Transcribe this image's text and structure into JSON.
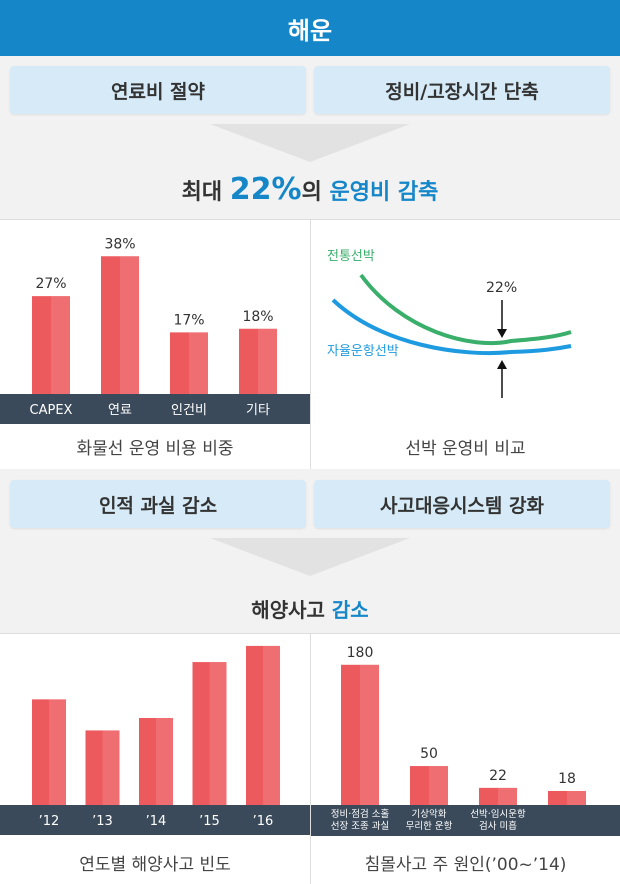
{
  "header": {
    "title": "해운"
  },
  "section1": {
    "pill_left": "연료비 절약",
    "pill_right": "정비/고장시간 단축",
    "headline_pre": "최대 ",
    "headline_num": "22%",
    "headline_mid": "의 ",
    "headline_accent": "운영비 감축"
  },
  "section2": {
    "pill_left": "인적 과실 감소",
    "pill_right": "사고대응시스템 강화",
    "headline_pre": "해양사고 ",
    "headline_accent": "감소"
  },
  "colors": {
    "header": "#1587c9",
    "accent": "#1587c9",
    "bar": "#ec5a5e",
    "green": "#3aae6b",
    "blue": "#1e9ae0",
    "axis": "#3a4a5a"
  },
  "chart_data": [
    {
      "type": "bar",
      "title": "화물선 운영 비용 비중",
      "categories": [
        "CAPEX",
        "연료",
        "인건비",
        "기타"
      ],
      "values": [
        27,
        38,
        17,
        18
      ],
      "value_labels": [
        "27%",
        "38%",
        "17%",
        "18%"
      ],
      "ylim": [
        0,
        40
      ]
    },
    {
      "type": "line",
      "title": "선박 운영비 비교",
      "series": [
        {
          "name": "전통선박"
        },
        {
          "name": "자율운항선박"
        }
      ],
      "annotation": "22%"
    },
    {
      "type": "bar",
      "title": "연도별 해양사고 빈도",
      "categories": [
        "’12",
        "’13",
        "’14",
        "’15",
        "’16"
      ],
      "values": [
        85,
        60,
        70,
        115,
        128
      ],
      "ylim": [
        0,
        140
      ]
    },
    {
      "type": "bar",
      "title": "침몰사고 주 원인(’00~’14)",
      "categories": [
        [
          "정비·점검 소홀",
          "선장 조종 과실"
        ],
        [
          "기상악화",
          "무리한 운항"
        ],
        [
          "선박·임시운항",
          "검사 미흡"
        ],
        [
          "",
          ""
        ]
      ],
      "values": [
        180,
        50,
        22,
        18
      ],
      "value_labels": [
        "180",
        "50",
        "22",
        "18"
      ],
      "ylim": [
        0,
        190
      ]
    }
  ]
}
